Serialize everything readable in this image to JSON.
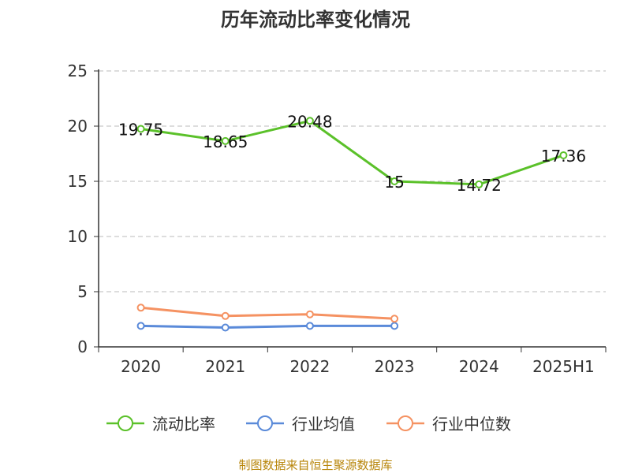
{
  "title": "历年流动比率变化情况",
  "source": "制图数据来自恒生聚源数据库",
  "chart_data": {
    "type": "line",
    "categories": [
      "2020",
      "2021",
      "2022",
      "2023",
      "2024",
      "2025H1"
    ],
    "ylim": [
      0,
      25
    ],
    "yticks": [
      "0",
      "5",
      "10",
      "15",
      "20",
      "25"
    ],
    "grid": true,
    "legend_position": "bottom",
    "series": [
      {
        "name": "流动比率",
        "color": "#5bc12a",
        "values": [
          19.75,
          18.65,
          20.48,
          15,
          14.72,
          17.36
        ],
        "labels": [
          "19.75",
          "18.65",
          "20.48",
          "15",
          "14.72",
          "17.36"
        ]
      },
      {
        "name": "行业均值",
        "color": "#5a8ad9",
        "values": [
          1.9,
          1.75,
          1.9,
          1.9,
          null,
          null
        ]
      },
      {
        "name": "行业中位数",
        "color": "#f59262",
        "values": [
          3.55,
          2.8,
          2.95,
          2.55,
          null,
          null
        ]
      }
    ]
  }
}
